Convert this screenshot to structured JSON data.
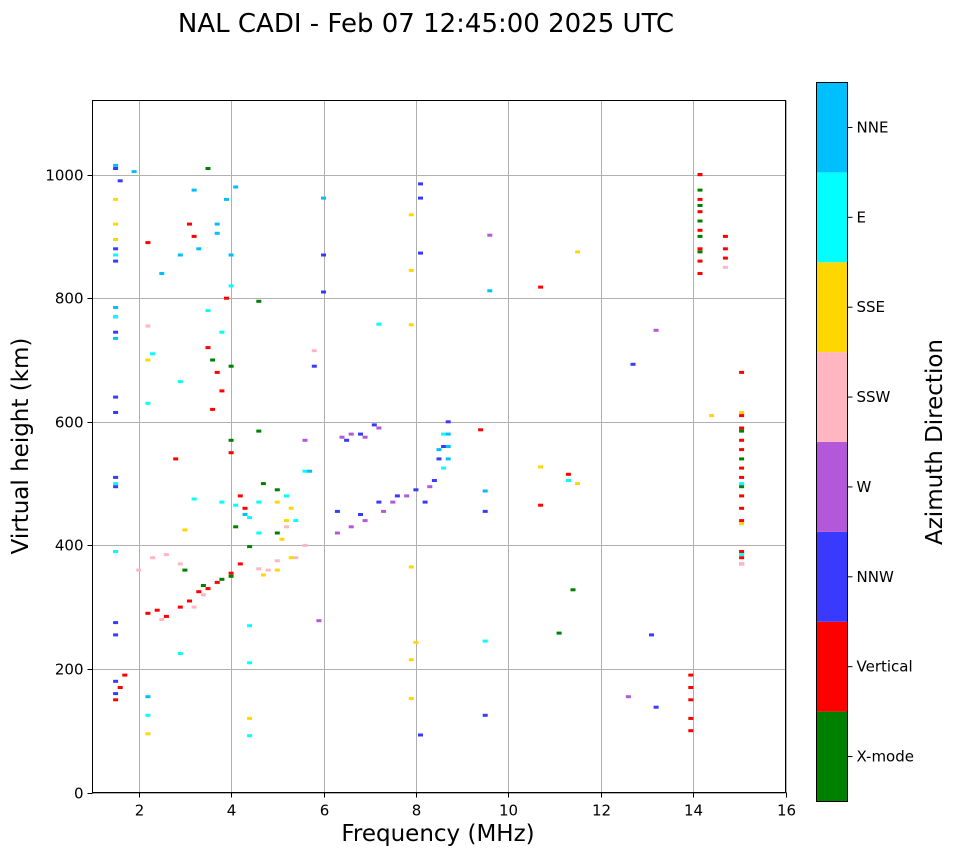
{
  "title": "NAL CADI - Feb 07 12:45:00 2025 UTC",
  "chart_data": {
    "type": "scatter",
    "title": "NAL CADI - Feb 07 12:45:00 2025 UTC",
    "xlabel": "Frequency (MHz)",
    "ylabel": "Virtual height (km)",
    "xlim": [
      1,
      16
    ],
    "ylim": [
      0,
      1120
    ],
    "xticks": [
      2,
      4,
      6,
      8,
      10,
      12,
      14,
      16
    ],
    "yticks": [
      0,
      200,
      400,
      600,
      800,
      1000
    ],
    "grid": true,
    "colorbar": {
      "label": "Azimuth Direction",
      "categories": [
        {
          "name": "X-mode",
          "color": "#008000"
        },
        {
          "name": "Vertical",
          "color": "#ff0000"
        },
        {
          "name": "NNW",
          "color": "#3a3aff"
        },
        {
          "name": "W",
          "color": "#b358d8"
        },
        {
          "name": "SSW",
          "color": "#ffb6c1"
        },
        {
          "name": "SSE",
          "color": "#ffd700"
        },
        {
          "name": "E",
          "color": "#00ffff"
        },
        {
          "name": "NNE",
          "color": "#00bfff"
        }
      ]
    },
    "series": [
      {
        "name": "X-mode",
        "points": [
          [
            3.5,
            1010
          ],
          [
            4.6,
            795
          ],
          [
            3.6,
            700
          ],
          [
            4.0,
            690
          ],
          [
            4.6,
            585
          ],
          [
            4.7,
            500
          ],
          [
            5.0,
            490
          ],
          [
            4.1,
            430
          ],
          [
            3.0,
            360
          ],
          [
            3.8,
            345
          ],
          [
            4.0,
            350
          ],
          [
            3.4,
            335
          ],
          [
            4.4,
            398
          ],
          [
            5.0,
            420
          ],
          [
            4.0,
            570
          ],
          [
            11.1,
            258
          ],
          [
            11.4,
            328
          ],
          [
            14.15,
            1000
          ],
          [
            14.15,
            975
          ],
          [
            14.15,
            950
          ],
          [
            14.15,
            925
          ],
          [
            14.15,
            900
          ],
          [
            14.15,
            875
          ],
          [
            15.05,
            585
          ],
          [
            15.05,
            540
          ],
          [
            15.05,
            495
          ]
        ]
      },
      {
        "name": "Vertical",
        "points": [
          [
            1.5,
            150
          ],
          [
            1.6,
            170
          ],
          [
            1.7,
            190
          ],
          [
            2.2,
            290
          ],
          [
            2.4,
            295
          ],
          [
            2.6,
            285
          ],
          [
            2.9,
            300
          ],
          [
            3.1,
            310
          ],
          [
            3.3,
            325
          ],
          [
            3.5,
            330
          ],
          [
            3.7,
            340
          ],
          [
            4.0,
            355
          ],
          [
            4.2,
            370
          ],
          [
            3.6,
            620
          ],
          [
            3.8,
            650
          ],
          [
            3.5,
            720
          ],
          [
            3.7,
            680
          ],
          [
            3.2,
            900
          ],
          [
            3.1,
            920
          ],
          [
            3.9,
            800
          ],
          [
            4.0,
            550
          ],
          [
            4.2,
            480
          ],
          [
            4.3,
            460
          ],
          [
            10.7,
            818
          ],
          [
            10.7,
            465
          ],
          [
            11.3,
            515
          ],
          [
            13.95,
            190
          ],
          [
            13.95,
            170
          ],
          [
            13.95,
            150
          ],
          [
            13.95,
            120
          ],
          [
            13.95,
            100
          ],
          [
            14.15,
            1000
          ],
          [
            14.15,
            960
          ],
          [
            14.15,
            940
          ],
          [
            14.15,
            910
          ],
          [
            14.15,
            880
          ],
          [
            14.15,
            860
          ],
          [
            14.15,
            840
          ],
          [
            14.7,
            900
          ],
          [
            14.7,
            880
          ],
          [
            14.7,
            865
          ],
          [
            15.05,
            680
          ],
          [
            15.05,
            610
          ],
          [
            15.05,
            590
          ],
          [
            15.05,
            570
          ],
          [
            15.05,
            555
          ],
          [
            15.05,
            525
          ],
          [
            15.05,
            510
          ],
          [
            15.05,
            480
          ],
          [
            15.05,
            460
          ],
          [
            15.05,
            440
          ],
          [
            15.05,
            390
          ],
          [
            15.05,
            380
          ],
          [
            15.05,
            370
          ],
          [
            9.4,
            587
          ],
          [
            2.2,
            890
          ],
          [
            2.8,
            540
          ]
        ]
      },
      {
        "name": "NNW",
        "points": [
          [
            1.5,
            1010
          ],
          [
            1.5,
            880
          ],
          [
            1.5,
            860
          ],
          [
            1.5,
            770
          ],
          [
            1.5,
            745
          ],
          [
            1.5,
            640
          ],
          [
            1.5,
            615
          ],
          [
            1.5,
            510
          ],
          [
            1.5,
            495
          ],
          [
            1.5,
            390
          ],
          [
            1.5,
            275
          ],
          [
            1.5,
            255
          ],
          [
            1.5,
            180
          ],
          [
            1.5,
            160
          ],
          [
            1.6,
            990
          ],
          [
            6.3,
            455
          ],
          [
            6.8,
            450
          ],
          [
            7.2,
            470
          ],
          [
            7.6,
            480
          ],
          [
            8.0,
            490
          ],
          [
            8.2,
            470
          ],
          [
            8.4,
            505
          ],
          [
            8.5,
            540
          ],
          [
            8.6,
            560
          ],
          [
            8.7,
            600
          ],
          [
            6.5,
            570
          ],
          [
            6.8,
            580
          ],
          [
            7.1,
            595
          ],
          [
            12.7,
            693
          ],
          [
            13.1,
            255
          ],
          [
            13.2,
            138
          ],
          [
            9.5,
            125
          ],
          [
            8.1,
            93
          ],
          [
            8.1,
            985
          ],
          [
            8.1,
            962
          ],
          [
            9.5,
            455
          ],
          [
            6.0,
            810
          ],
          [
            6.0,
            870
          ],
          [
            5.8,
            690
          ],
          [
            8.1,
            873
          ]
        ]
      },
      {
        "name": "W",
        "points": [
          [
            6.4,
            575
          ],
          [
            6.6,
            580
          ],
          [
            6.9,
            575
          ],
          [
            7.2,
            590
          ],
          [
            6.3,
            420
          ],
          [
            6.6,
            430
          ],
          [
            6.9,
            440
          ],
          [
            7.3,
            455
          ],
          [
            7.5,
            470
          ],
          [
            7.8,
            480
          ],
          [
            8.3,
            495
          ],
          [
            12.6,
            155
          ],
          [
            13.2,
            748
          ],
          [
            9.6,
            902
          ],
          [
            5.9,
            278
          ],
          [
            5.6,
            570
          ]
        ]
      },
      {
        "name": "SSW",
        "points": [
          [
            2.0,
            360
          ],
          [
            2.3,
            380
          ],
          [
            2.6,
            385
          ],
          [
            2.9,
            370
          ],
          [
            3.2,
            300
          ],
          [
            3.4,
            320
          ],
          [
            5.4,
            380
          ],
          [
            5.6,
            400
          ],
          [
            5.2,
            430
          ],
          [
            5.0,
            375
          ],
          [
            4.8,
            360
          ],
          [
            4.6,
            362
          ],
          [
            2.5,
            280
          ],
          [
            14.7,
            850
          ],
          [
            15.05,
            370
          ],
          [
            5.8,
            715
          ],
          [
            2.2,
            755
          ]
        ]
      },
      {
        "name": "SSE",
        "points": [
          [
            1.5,
            960
          ],
          [
            1.5,
            920
          ],
          [
            1.5,
            895
          ],
          [
            4.7,
            352
          ],
          [
            5.0,
            360
          ],
          [
            5.3,
            380
          ],
          [
            5.1,
            410
          ],
          [
            5.2,
            440
          ],
          [
            5.3,
            460
          ],
          [
            5.0,
            470
          ],
          [
            7.9,
            935
          ],
          [
            7.9,
            757
          ],
          [
            7.9,
            845
          ],
          [
            7.9,
            365
          ],
          [
            7.9,
            215
          ],
          [
            7.9,
            152
          ],
          [
            8.0,
            243
          ],
          [
            11.5,
            875
          ],
          [
            10.7,
            527
          ],
          [
            11.5,
            500
          ],
          [
            14.4,
            610
          ],
          [
            15.05,
            435
          ],
          [
            15.05,
            615
          ],
          [
            2.2,
            95
          ],
          [
            4.4,
            120
          ],
          [
            3.0,
            425
          ],
          [
            2.2,
            700
          ]
        ]
      },
      {
        "name": "E",
        "points": [
          [
            1.5,
            870
          ],
          [
            1.5,
            770
          ],
          [
            1.5,
            500
          ],
          [
            1.5,
            390
          ],
          [
            4.1,
            465
          ],
          [
            4.4,
            445
          ],
          [
            4.6,
            420
          ],
          [
            5.2,
            480
          ],
          [
            5.6,
            520
          ],
          [
            4.6,
            470
          ],
          [
            4.0,
            820
          ],
          [
            3.5,
            780
          ],
          [
            3.8,
            745
          ],
          [
            2.3,
            710
          ],
          [
            2.2,
            630
          ],
          [
            2.9,
            665
          ],
          [
            3.2,
            475
          ],
          [
            3.8,
            470
          ],
          [
            9.5,
            245
          ],
          [
            11.3,
            505
          ],
          [
            8.6,
            580
          ],
          [
            8.6,
            525
          ],
          [
            15.05,
            385
          ],
          [
            15.05,
            500
          ],
          [
            2.9,
            225
          ],
          [
            2.2,
            125
          ],
          [
            4.4,
            92
          ],
          [
            4.4,
            210
          ],
          [
            4.4,
            270
          ],
          [
            5.4,
            440
          ],
          [
            7.2,
            758
          ]
        ]
      },
      {
        "name": "NNE",
        "points": [
          [
            3.9,
            960
          ],
          [
            4.1,
            980
          ],
          [
            3.7,
            920
          ],
          [
            3.3,
            880
          ],
          [
            2.9,
            870
          ],
          [
            2.5,
            840
          ],
          [
            3.2,
            975
          ],
          [
            4.0,
            870
          ],
          [
            3.7,
            905
          ],
          [
            1.5,
            1015
          ],
          [
            1.5,
            785
          ],
          [
            1.5,
            735
          ],
          [
            8.7,
            580
          ],
          [
            8.7,
            560
          ],
          [
            8.7,
            540
          ],
          [
            8.5,
            555
          ],
          [
            4.3,
            450
          ],
          [
            5.7,
            520
          ],
          [
            6.0,
            962
          ],
          [
            9.6,
            812
          ],
          [
            9.5,
            488
          ],
          [
            2.2,
            155
          ],
          [
            1.9,
            1005
          ]
        ]
      }
    ]
  }
}
